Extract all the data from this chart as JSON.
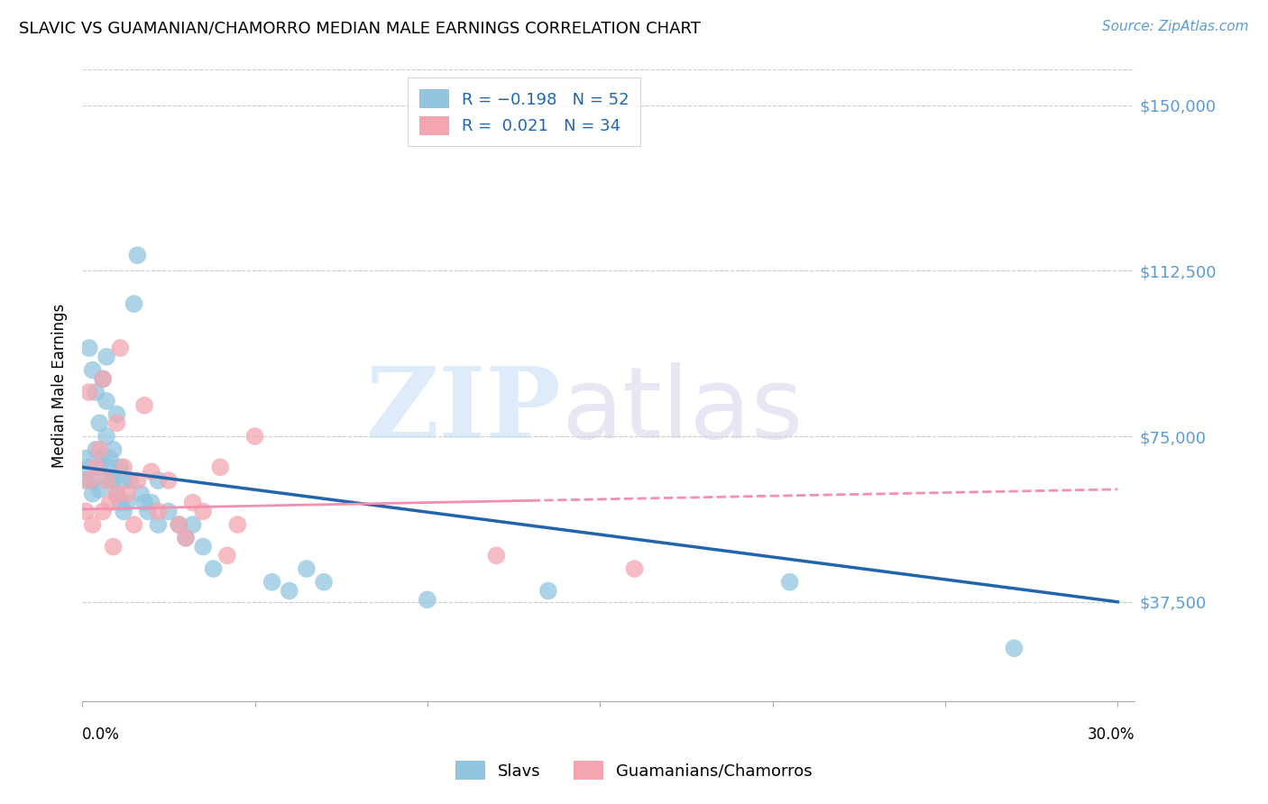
{
  "title": "SLAVIC VS GUAMANIAN/CHAMORRO MEDIAN MALE EARNINGS CORRELATION CHART",
  "source": "Source: ZipAtlas.com",
  "ylabel": "Median Male Earnings",
  "ytick_labels": [
    "$37,500",
    "$75,000",
    "$112,500",
    "$150,000"
  ],
  "ytick_values": [
    37500,
    75000,
    112500,
    150000
  ],
  "ymin": 15000,
  "ymax": 158000,
  "xmin": 0.0,
  "xmax": 0.305,
  "color_blue": "#92c5de",
  "color_pink": "#f4a6b0",
  "color_blue_line": "#2166ac",
  "color_pink_line": "#f48fb1",
  "slavs_line_x": [
    0.0,
    0.3
  ],
  "slavs_line_y": [
    68000,
    37500
  ],
  "guam_line_x": [
    0.0,
    0.3
  ],
  "guam_line_y": [
    58500,
    63000
  ],
  "slavs_x": [
    0.001,
    0.001,
    0.002,
    0.002,
    0.003,
    0.003,
    0.003,
    0.004,
    0.004,
    0.005,
    0.005,
    0.005,
    0.006,
    0.006,
    0.007,
    0.007,
    0.007,
    0.008,
    0.008,
    0.008,
    0.009,
    0.009,
    0.01,
    0.01,
    0.011,
    0.011,
    0.012,
    0.012,
    0.013,
    0.014,
    0.015,
    0.016,
    0.017,
    0.018,
    0.019,
    0.02,
    0.022,
    0.022,
    0.025,
    0.028,
    0.03,
    0.032,
    0.035,
    0.038,
    0.055,
    0.06,
    0.065,
    0.07,
    0.1,
    0.135,
    0.205,
    0.27
  ],
  "slavs_y": [
    65000,
    70000,
    68000,
    95000,
    90000,
    65000,
    62000,
    85000,
    72000,
    78000,
    68000,
    63000,
    88000,
    70000,
    93000,
    75000,
    83000,
    68000,
    65000,
    70000,
    72000,
    65000,
    80000,
    62000,
    68000,
    60000,
    65000,
    58000,
    60000,
    65000,
    105000,
    116000,
    62000,
    60000,
    58000,
    60000,
    65000,
    55000,
    58000,
    55000,
    52000,
    55000,
    50000,
    45000,
    42000,
    40000,
    45000,
    42000,
    38000,
    40000,
    42000,
    27000
  ],
  "guam_x": [
    0.001,
    0.002,
    0.002,
    0.003,
    0.004,
    0.005,
    0.006,
    0.006,
    0.007,
    0.008,
    0.009,
    0.01,
    0.01,
    0.011,
    0.012,
    0.013,
    0.015,
    0.016,
    0.018,
    0.02,
    0.022,
    0.025,
    0.028,
    0.03,
    0.032,
    0.035,
    0.04,
    0.042,
    0.045,
    0.05,
    0.12,
    0.16
  ],
  "guam_y": [
    58000,
    65000,
    85000,
    55000,
    68000,
    72000,
    58000,
    88000,
    65000,
    60000,
    50000,
    62000,
    78000,
    95000,
    68000,
    62000,
    55000,
    65000,
    82000,
    67000,
    58000,
    65000,
    55000,
    52000,
    60000,
    58000,
    68000,
    48000,
    55000,
    75000,
    48000,
    45000
  ]
}
